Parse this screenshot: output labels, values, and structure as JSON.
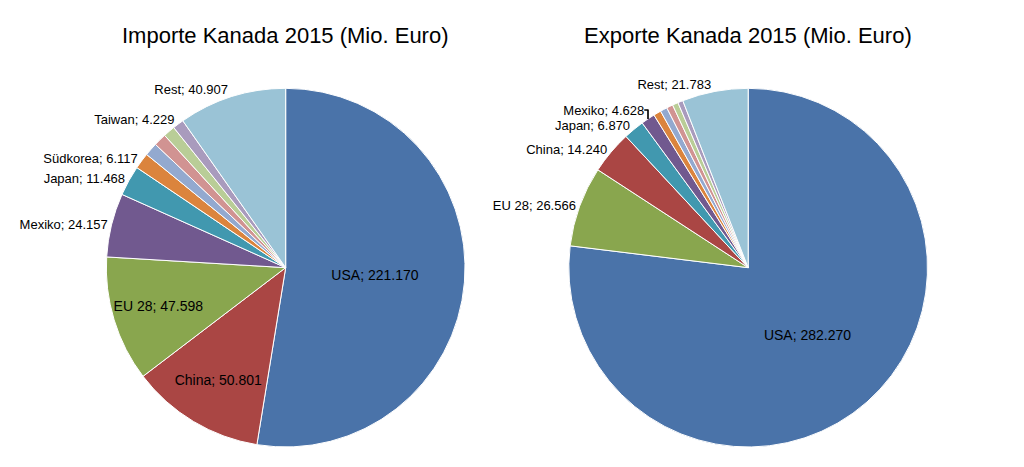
{
  "chart_data": [
    {
      "type": "pie",
      "title": "Importe Kanada 2015 (Mio. Euro)",
      "categories": [
        "USA",
        "China",
        "EU 28",
        "Mexiko",
        "Japan",
        "Südkorea",
        null,
        null,
        null,
        "Taiwan",
        "Rest"
      ],
      "values": [
        221170,
        50801,
        47598,
        24157,
        11468,
        6117,
        5000,
        4800,
        4500,
        4229,
        40907
      ],
      "value_labels": [
        "USA; 221.170",
        "China; 50.801",
        "EU 28; 47.598",
        "Mexiko; 24.157",
        "Japan; 11.468",
        "Südkorea; 6.117",
        null,
        null,
        null,
        "Taiwan; 4.229",
        "Rest; 40.907"
      ],
      "colors": [
        "#4a73a9",
        "#aa4644",
        "#89a64e",
        "#71598f",
        "#4198af",
        "#db843d",
        "#93a9cf",
        "#d19392",
        "#b9cd97",
        "#a99bbd",
        "#9ac3d6"
      ],
      "data_labels": true
    },
    {
      "type": "pie",
      "title": "Exporte Kanada 2015 (Mio. Euro)",
      "categories": [
        "USA",
        "EU 28",
        "China",
        "Japan",
        "Mexiko",
        null,
        null,
        null,
        null,
        null,
        "Rest"
      ],
      "values": [
        282270,
        26566,
        14240,
        6870,
        4628,
        2500,
        2300,
        2100,
        1900,
        1700,
        21783
      ],
      "value_labels": [
        "USA; 282.270",
        "EU 28; 26.566",
        "China; 14.240",
        "Japan; 6.870",
        "Mexiko; 4.628",
        null,
        null,
        null,
        null,
        null,
        "Rest; 21.783"
      ],
      "colors": [
        "#4a73a9",
        "#89a64e",
        "#aa4644",
        "#4198af",
        "#71598f",
        "#db843d",
        "#93a9cf",
        "#d19392",
        "#b9cd97",
        "#a99bbd",
        "#9ac3d6"
      ],
      "data_labels": true
    }
  ]
}
